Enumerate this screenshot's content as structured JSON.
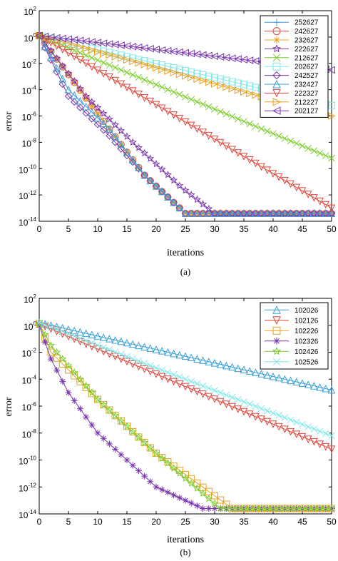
{
  "chart_data": [
    {
      "type": "line",
      "panel_label": "(a)",
      "xlabel": "iterations",
      "ylabel": "error",
      "xlim": [
        0,
        50
      ],
      "ylim_log10": [
        -14,
        2
      ],
      "xticks": [
        "0",
        "5",
        "10",
        "15",
        "20",
        "25",
        "30",
        "35",
        "40",
        "45",
        "50"
      ],
      "yticks": [
        {
          "base": "10",
          "exp": "2"
        },
        {
          "base": "10",
          "exp": "0"
        },
        {
          "base": "10",
          "exp": "-2"
        },
        {
          "base": "10",
          "exp": "-4"
        },
        {
          "base": "10",
          "exp": "-6"
        },
        {
          "base": "10",
          "exp": "-8"
        },
        {
          "base": "10",
          "exp": "-10"
        },
        {
          "base": "10",
          "exp": "-12"
        },
        {
          "base": "10",
          "exp": "-14"
        }
      ],
      "yscale": "log",
      "legend_position": "top-right",
      "series": [
        {
          "name": "252627",
          "color": "#3aa0d8",
          "marker": "plus",
          "points": [
            [
              0,
              0.1
            ],
            [
              12,
              -7
            ],
            [
              18,
              -10.5
            ],
            [
              25,
              -13.4
            ],
            [
              50,
              -13.4
            ]
          ]
        },
        {
          "name": "242627",
          "color": "#e0463c",
          "marker": "circle",
          "points": [
            [
              0,
              0.1
            ],
            [
              12,
              -7
            ],
            [
              18,
              -10.5
            ],
            [
              25,
              -13.4
            ],
            [
              50,
              -13.4
            ]
          ]
        },
        {
          "name": "232627",
          "color": "#e8a020",
          "marker": "asterisk",
          "points": [
            [
              0,
              0.1
            ],
            [
              12,
              -7
            ],
            [
              18,
              -10.5
            ],
            [
              25,
              -13.4
            ],
            [
              50,
              -13.4
            ]
          ]
        },
        {
          "name": "222627",
          "color": "#7a35b0",
          "marker": "star",
          "points": [
            [
              0,
              0.1
            ],
            [
              8,
              -4.5
            ],
            [
              16,
              -8
            ],
            [
              24,
              -11.3
            ],
            [
              30,
              -13.4
            ],
            [
              50,
              -13.4
            ]
          ]
        },
        {
          "name": "212627",
          "color": "#7acc29",
          "marker": "x",
          "points": [
            [
              0,
              0.1
            ],
            [
              50,
              -9.2
            ]
          ]
        },
        {
          "name": "202627",
          "color": "#7fe8e8",
          "marker": "square",
          "points": [
            [
              0,
              0.1
            ],
            [
              50,
              -5.2
            ]
          ]
        },
        {
          "name": "242527",
          "color": "#7a35b0",
          "marker": "diamond",
          "points": [
            [
              0,
              0.1
            ],
            [
              5,
              -4.5
            ],
            [
              12,
              -7.5
            ],
            [
              18,
              -10.5
            ],
            [
              25,
              -13.4
            ],
            [
              50,
              -13.4
            ]
          ]
        },
        {
          "name": "232427",
          "color": "#3aa0d8",
          "marker": "triangle-up",
          "points": [
            [
              0,
              0.1
            ],
            [
              5,
              -4
            ],
            [
              12,
              -7
            ],
            [
              18,
              -10.5
            ],
            [
              25,
              -13.4
            ],
            [
              50,
              -13.4
            ]
          ]
        },
        {
          "name": "222327",
          "color": "#e0463c",
          "marker": "triangle-down",
          "points": [
            [
              0,
              0.1
            ],
            [
              50,
              -13.0
            ]
          ]
        },
        {
          "name": "212227",
          "color": "#e8a020",
          "marker": "triangle-right",
          "points": [
            [
              0,
              0.1
            ],
            [
              50,
              -6.0
            ]
          ]
        },
        {
          "name": "202127",
          "color": "#7a35b0",
          "marker": "triangle-left",
          "points": [
            [
              0,
              0.1
            ],
            [
              50,
              -2.5
            ]
          ]
        }
      ]
    },
    {
      "type": "line",
      "panel_label": "(b)",
      "xlabel": "iterations",
      "ylabel": "error",
      "xlim": [
        0,
        50
      ],
      "ylim_log10": [
        -14,
        2
      ],
      "xticks": [
        "0",
        "5",
        "10",
        "15",
        "20",
        "25",
        "30",
        "35",
        "40",
        "45",
        "50"
      ],
      "yticks": [
        {
          "base": "10",
          "exp": "2"
        },
        {
          "base": "10",
          "exp": "0"
        },
        {
          "base": "10",
          "exp": "-2"
        },
        {
          "base": "10",
          "exp": "-4"
        },
        {
          "base": "10",
          "exp": "-6"
        },
        {
          "base": "10",
          "exp": "-8"
        },
        {
          "base": "10",
          "exp": "-10"
        },
        {
          "base": "10",
          "exp": "-12"
        },
        {
          "base": "10",
          "exp": "-14"
        }
      ],
      "yscale": "log",
      "legend_position": "top-right",
      "series": [
        {
          "name": "102026",
          "color": "#3aa0d8",
          "marker": "triangle-up",
          "points": [
            [
              0,
              0.2
            ],
            [
              50,
              -4.8
            ]
          ]
        },
        {
          "name": "102126",
          "color": "#e0463c",
          "marker": "triangle-down",
          "points": [
            [
              0,
              0.1
            ],
            [
              50,
              -9.2
            ]
          ]
        },
        {
          "name": "102226",
          "color": "#e8a020",
          "marker": "square",
          "points": [
            [
              0,
              0.1
            ],
            [
              2,
              -2
            ],
            [
              10,
              -5.5
            ],
            [
              20,
              -9.5
            ],
            [
              33,
              -13.6
            ],
            [
              50,
              -13.6
            ]
          ]
        },
        {
          "name": "102326",
          "color": "#7a35b0",
          "marker": "asterisk",
          "points": [
            [
              0,
              0.0
            ],
            [
              2,
              -2.5
            ],
            [
              5,
              -5
            ],
            [
              10,
              -8
            ],
            [
              20,
              -12
            ],
            [
              28,
              -13.6
            ],
            [
              50,
              -13.6
            ]
          ]
        },
        {
          "name": "102426",
          "color": "#7acc29",
          "marker": "star",
          "points": [
            [
              0,
              0.1
            ],
            [
              2,
              -1.5
            ],
            [
              10,
              -5.5
            ],
            [
              20,
              -9.5
            ],
            [
              31,
              -13.6
            ],
            [
              50,
              -13.6
            ]
          ]
        },
        {
          "name": "102526",
          "color": "#7fe8e8",
          "marker": "x",
          "points": [
            [
              0,
              0.2
            ],
            [
              50,
              -8.2
            ]
          ]
        }
      ]
    }
  ]
}
